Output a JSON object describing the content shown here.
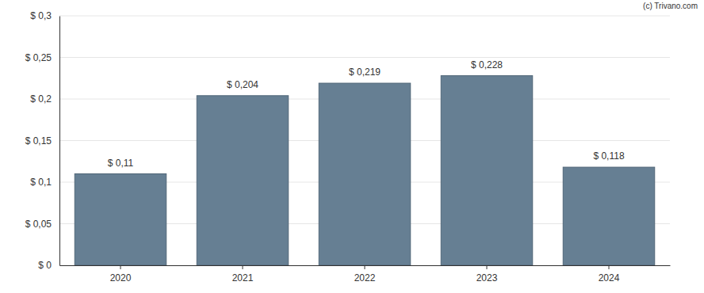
{
  "chart_data": {
    "type": "bar",
    "categories": [
      "2020",
      "2021",
      "2022",
      "2023",
      "2024"
    ],
    "values": [
      0.11,
      0.204,
      0.219,
      0.228,
      0.118
    ],
    "value_labels": [
      "$ 0,11",
      "$ 0,204",
      "$ 0,219",
      "$ 0,228",
      "$ 0,118"
    ],
    "color": "#667f93",
    "ylim": [
      0,
      0.3
    ],
    "yticks": [
      {
        "value": 0,
        "label": "$ 0"
      },
      {
        "value": 0.05,
        "label": "$ 0,05"
      },
      {
        "value": 0.1,
        "label": "$ 0,1"
      },
      {
        "value": 0.15,
        "label": "$ 0,15"
      },
      {
        "value": 0.2,
        "label": "$ 0,2"
      },
      {
        "value": 0.25,
        "label": "$ 0,25"
      },
      {
        "value": 0.3,
        "label": "$ 0,3"
      }
    ],
    "grid": true,
    "data_labels": true,
    "annotations": [
      "(c) Trivano.com"
    ]
  }
}
